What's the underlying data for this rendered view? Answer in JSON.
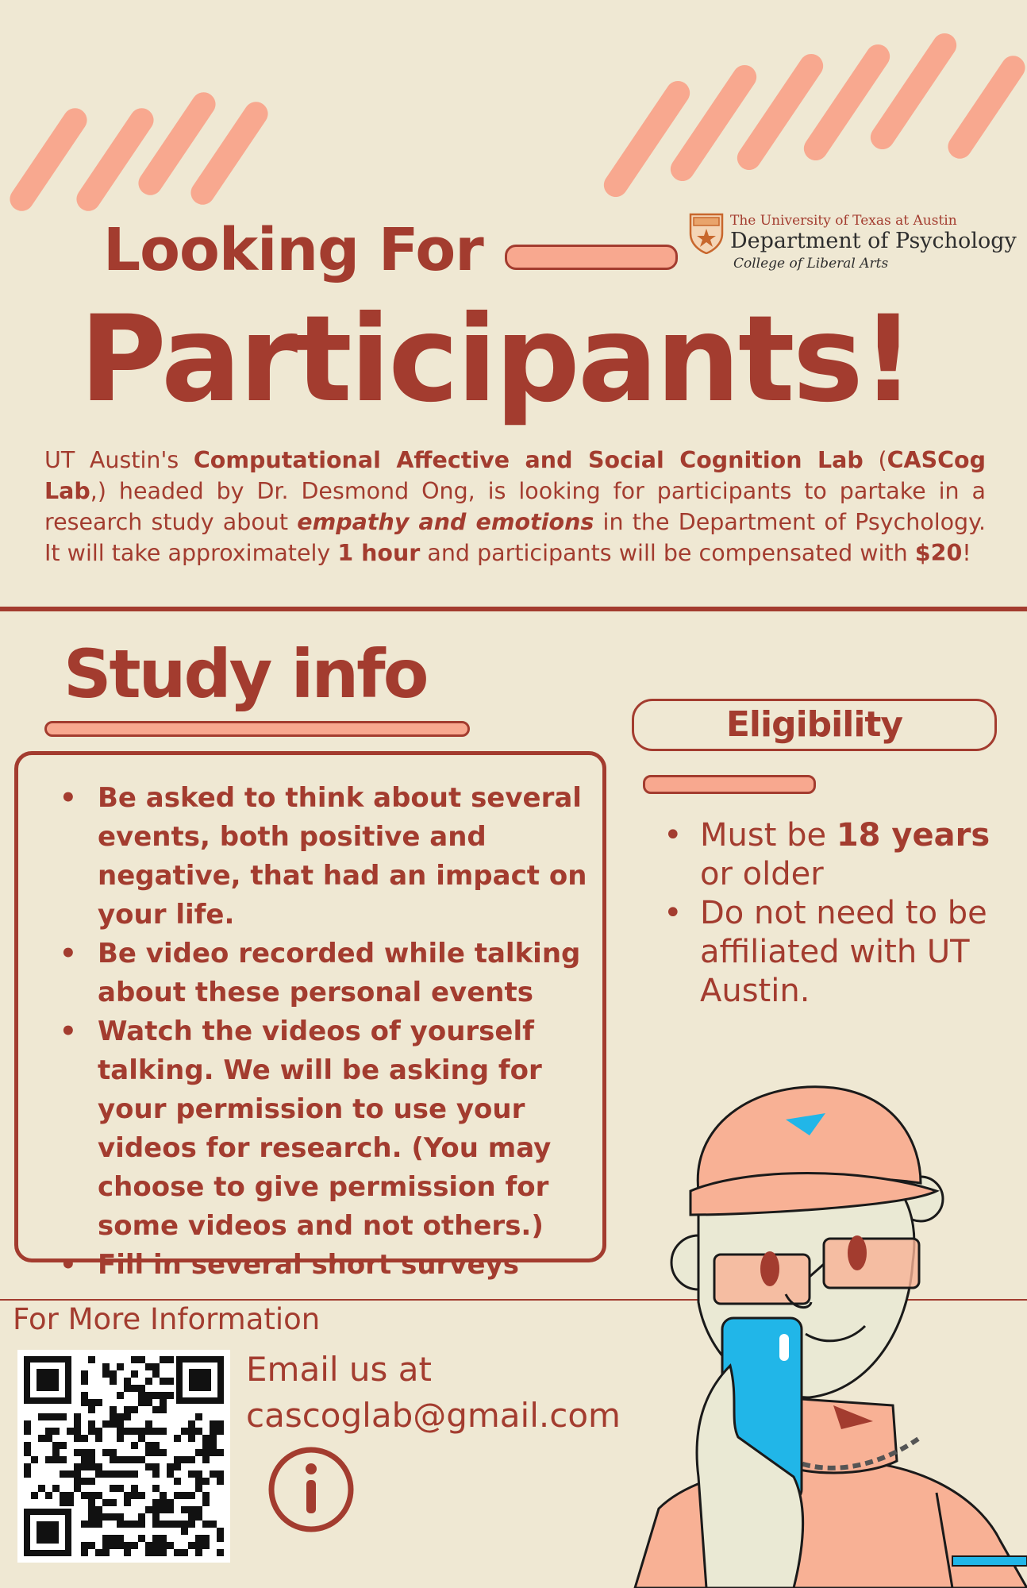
{
  "colors": {
    "background": "#efe8d3",
    "accent": "#a33c2f",
    "peach": "#f8a88f",
    "phone": "#21b6e8"
  },
  "header": {
    "looking_for": "Looking For",
    "participants": "Participants!"
  },
  "logo": {
    "line1": "The University of Texas at Austin",
    "line2": "Department of Psychology",
    "line3": "College of Liberal Arts"
  },
  "intro": {
    "p1": "UT Austin's ",
    "lab": "Computational Affective and Social Cognition Lab",
    "p2": " (",
    "lab_short": "CASCog Lab",
    "p3": ",) headed by Dr. Desmond Ong, is looking for participants to partake in a research study about ",
    "topic": "empathy and emotions",
    "p4": " in the Department of Psychology. It will take approximately ",
    "duration": "1 hour",
    "p5": " and participants will be compensated with ",
    "pay": "$20",
    "p6": "!"
  },
  "study": {
    "heading": "Study info",
    "items": [
      "Be asked to think about several events, both positive and negative, that had an impact on your life.",
      "Be video recorded while talking about these personal events",
      "Watch the videos of yourself talking. We will be asking for your permission to use your videos for research. (You may choose to give permission for some videos and not others.)",
      "Fill in several short surveys"
    ]
  },
  "eligibility": {
    "heading": "Eligibility",
    "item1_pre": "Must be ",
    "item1_bold": "18 years",
    "item1_post": " or older",
    "item2": "Do not need to be affiliated with UT Austin."
  },
  "contact": {
    "heading": "For More Information",
    "email_line1": "Email us at",
    "email_line2": "cascoglab@gmail.com",
    "info_icon": "info-icon",
    "qr_icon": "qr-code"
  }
}
